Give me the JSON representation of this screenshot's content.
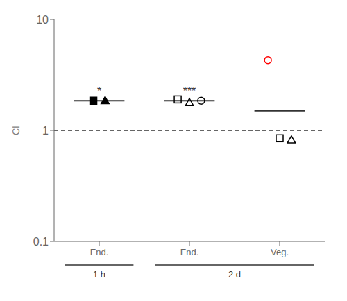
{
  "chart_data": {
    "type": "scatter",
    "ylabel": "CI",
    "log": "y",
    "ylim": [
      0.1,
      10
    ],
    "yticks": [
      0.1,
      1,
      10
    ],
    "categories": [
      "End.",
      "End.",
      "Veg."
    ],
    "category_groups": [
      {
        "label": "1 h",
        "size": 1
      },
      {
        "label": "2 d",
        "size": 2
      }
    ],
    "reference_line": {
      "value": 1,
      "line_style": "dashed"
    },
    "means": [
      1.85,
      1.85,
      1.5
    ],
    "significance": [
      "*",
      "***",
      null
    ],
    "points": [
      [
        {
          "y": 1.85,
          "marker": "filled square",
          "color": "black"
        },
        {
          "y": 1.85,
          "marker": "filled triangle",
          "color": "black"
        }
      ],
      [
        {
          "y": 1.9,
          "marker": "open square",
          "color": "black"
        },
        {
          "y": 1.78,
          "marker": "open triangle",
          "color": "black"
        },
        {
          "y": 1.85,
          "marker": "open circle",
          "color": "black"
        }
      ],
      [
        {
          "y": 4.3,
          "marker": "open circle",
          "color": "#ff0000"
        },
        {
          "y": 0.85,
          "marker": "open square",
          "color": "black"
        },
        {
          "y": 0.82,
          "marker": "open triangle",
          "color": "black"
        }
      ]
    ]
  }
}
